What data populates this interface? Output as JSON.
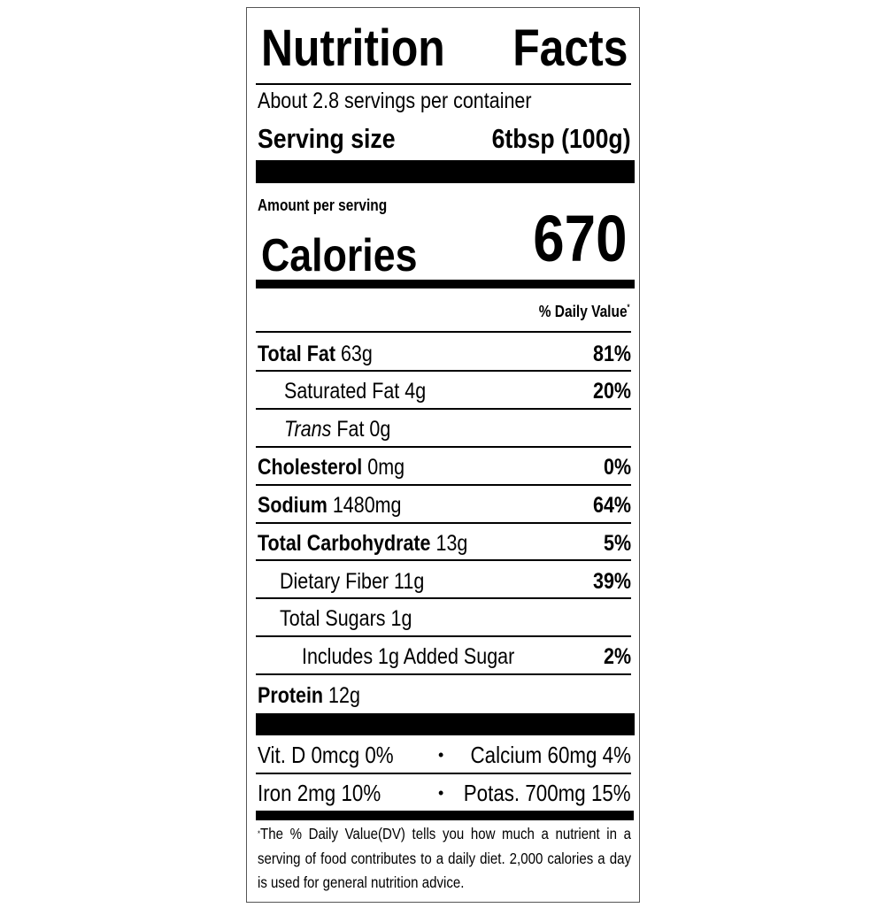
{
  "title_left": "Nutrition",
  "title_right": "Facts",
  "servings_per_container": "About 2.8 servings per container",
  "serving_size_label": "Serving size",
  "serving_size_value": "6tbsp (100g)",
  "amount_per_serving": "Amount per serving",
  "calories_label": "Calories",
  "calories_value": "670",
  "daily_value_header": "% Daily Value",
  "daily_value_mark": "*",
  "nutrients": [
    {
      "name": "Total Fat",
      "amount": "63g",
      "dv": "81%"
    },
    {
      "name": "Saturated Fat",
      "amount": "4g",
      "dv": "20%"
    },
    {
      "name": "Trans",
      "name_suffix": "Fat",
      "amount": "0g",
      "dv": ""
    },
    {
      "name": "Cholesterol",
      "amount": "0mg",
      "dv": "0%"
    },
    {
      "name": "Sodium",
      "amount": "1480mg",
      "dv": "64%"
    },
    {
      "name": "Total Carbohydrate",
      "amount": "13g",
      "dv": "5%"
    },
    {
      "name": "Dietary Fiber",
      "amount": "11g",
      "dv": "39%"
    },
    {
      "name": "Total Sugars",
      "amount": "1g",
      "dv": ""
    },
    {
      "name": "Includes 1g Added Sugar",
      "amount": "",
      "dv": "2%"
    },
    {
      "name": "Protein",
      "amount": "12g",
      "dv": ""
    }
  ],
  "vitamins": [
    {
      "left": "Vit. D 0mcg 0%",
      "bullet": "•",
      "right": "Calcium 60mg 4%"
    },
    {
      "left": "Iron 2mg 10%",
      "bullet": "•",
      "right": "Potas. 700mg 15%"
    }
  ],
  "footnote_mark": "*",
  "footnote": "The % Daily Value(DV) tells you how much a nutrient in a serving of food contributes to a daily diet. 2,000 calories a day is used for general nutrition advice."
}
